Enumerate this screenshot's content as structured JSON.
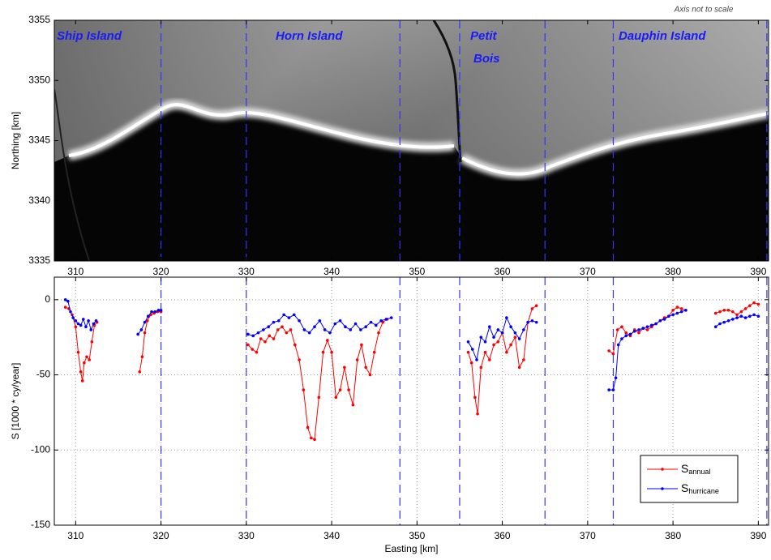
{
  "chart_data": [
    {
      "type": "image",
      "note": "Axis not to scale",
      "ylabel": "Northing [km]",
      "xlim": [
        307.5,
        391.2
      ],
      "xticks": [
        310,
        320,
        330,
        340,
        350,
        360,
        370,
        380,
        390
      ],
      "ylim": [
        3335,
        3355
      ],
      "yticks": [
        3335,
        3340,
        3345,
        3350,
        3355
      ],
      "grid": false,
      "boundaries": [
        320,
        330,
        348,
        355,
        365,
        373,
        391
      ],
      "boundary_color": "#3333ff",
      "annotations": [
        "Ship Island",
        "Horn Island",
        "Petit",
        "Bois",
        "Dauphin Island"
      ],
      "annotation_color": "#1a1aff"
    },
    {
      "type": "line",
      "ylabel": "S [1000 * cy/year]",
      "xlabel": "Easting [km]",
      "xlim": [
        307.5,
        391.2
      ],
      "xticks": [
        310,
        320,
        330,
        340,
        350,
        360,
        370,
        380,
        390
      ],
      "ylim": [
        -150,
        15
      ],
      "yticks": [
        -150,
        -100,
        -50,
        0
      ],
      "grid": true,
      "boundaries": [
        320,
        330,
        348,
        355,
        365,
        373,
        391
      ],
      "boundary_color": "#3333ff",
      "legend": "lower right",
      "series": [
        {
          "name": "S",
          "subscript": "annual",
          "color": "#ff0000",
          "x": [
            308.8,
            309.2,
            309.6,
            310.0,
            310.3,
            310.6,
            310.8,
            311.0,
            311.3,
            311.6,
            311.9,
            312.2,
            312.5,
            null,
            317.5,
            317.8,
            318.1,
            318.4,
            318.8,
            319.2,
            319.6,
            320.0,
            null,
            330.2,
            330.7,
            331.2,
            331.7,
            332.2,
            332.7,
            333.2,
            333.7,
            334.2,
            334.7,
            335.2,
            335.7,
            336.2,
            336.7,
            337.2,
            337.6,
            338.0,
            338.5,
            339.0,
            339.5,
            340.0,
            340.5,
            341.0,
            341.5,
            342.0,
            342.5,
            343.0,
            343.5,
            344.0,
            344.5,
            345.0,
            345.5,
            346.0,
            346.5,
            null,
            356.0,
            356.4,
            356.8,
            357.1,
            357.5,
            358.0,
            358.5,
            359.0,
            359.5,
            360.0,
            360.5,
            361.0,
            361.5,
            362.0,
            362.5,
            363.0,
            363.5,
            364.0,
            null,
            372.5,
            373.0,
            373.5,
            374.0,
            374.5,
            375.0,
            375.5,
            376.0,
            376.5,
            377.0,
            377.5,
            378.0,
            378.5,
            379.0,
            379.5,
            380.0,
            380.5,
            381.0,
            381.5,
            null,
            385.0,
            385.5,
            386.0,
            386.5,
            387.0,
            387.5,
            388.0,
            388.5,
            389.0,
            389.5,
            390.0
          ],
          "values": [
            -5,
            -6,
            -10,
            -18,
            -35,
            -48,
            -54,
            -42,
            -38,
            -40,
            -28,
            -17,
            -15,
            null,
            -48,
            -38,
            -22,
            -14,
            -10,
            -9,
            -8,
            -8,
            null,
            -30,
            -33,
            -35,
            -26,
            -28,
            -24,
            -26,
            -20,
            -18,
            -22,
            -20,
            -30,
            -40,
            -60,
            -85,
            -92,
            -93,
            -65,
            -35,
            -27,
            -35,
            -65,
            -60,
            -45,
            -60,
            -70,
            -40,
            -30,
            -45,
            -50,
            -35,
            -22,
            -15,
            -13,
            null,
            -35,
            -42,
            -65,
            -76,
            -45,
            -35,
            -40,
            -30,
            -28,
            -22,
            -35,
            -30,
            -25,
            -45,
            -40,
            -15,
            -6,
            -4,
            null,
            -34,
            -36,
            -20,
            -18,
            -22,
            -24,
            -20,
            -22,
            -19,
            -20,
            -18,
            -16,
            -14,
            -12,
            -11,
            -7,
            -5,
            -6,
            -7,
            null,
            -9,
            -8,
            -7,
            -7,
            -8,
            -10,
            -8,
            -6,
            -4,
            -2,
            -3
          ]
        },
        {
          "name": "S",
          "subscript": "hurricane",
          "color": "#0000ff",
          "x": [
            308.8,
            309.1,
            309.4,
            309.7,
            310.0,
            310.3,
            310.6,
            310.9,
            311.2,
            311.5,
            311.8,
            312.1,
            312.4,
            null,
            317.3,
            317.7,
            318.1,
            318.5,
            318.9,
            319.3,
            319.7,
            320.0,
            null,
            330.2,
            330.8,
            331.4,
            332.0,
            332.6,
            333.2,
            333.8,
            334.4,
            335.0,
            335.6,
            336.2,
            336.8,
            337.4,
            338.0,
            338.6,
            339.2,
            339.8,
            340.4,
            341.0,
            341.6,
            342.2,
            342.8,
            343.4,
            344.0,
            344.6,
            345.2,
            345.8,
            346.4,
            347.0,
            null,
            356.0,
            356.5,
            357.0,
            357.5,
            358.0,
            358.5,
            359.0,
            359.5,
            360.0,
            360.5,
            361.0,
            361.5,
            362.0,
            362.5,
            363.0,
            363.5,
            364.0,
            null,
            372.5,
            373.0,
            373.3,
            373.6,
            374.0,
            374.5,
            375.0,
            375.5,
            376.0,
            376.5,
            377.0,
            377.5,
            378.0,
            378.5,
            379.0,
            379.5,
            380.0,
            380.5,
            381.0,
            381.5,
            null,
            385.0,
            385.5,
            386.0,
            386.5,
            387.0,
            387.5,
            388.0,
            388.5,
            389.0,
            389.5,
            390.0
          ],
          "values": [
            0,
            -1,
            -8,
            -12,
            -14,
            -16,
            -17,
            -13,
            -18,
            -14,
            -20,
            -16,
            -14,
            null,
            -23,
            -20,
            -15,
            -11,
            -8,
            -8,
            -7,
            -7,
            null,
            -23,
            -24,
            -22,
            -20,
            -18,
            -15,
            -14,
            -10,
            -12,
            -10,
            -14,
            -20,
            -22,
            -18,
            -14,
            -20,
            -22,
            -16,
            -14,
            -18,
            -20,
            -16,
            -20,
            -18,
            -15,
            -17,
            -14,
            -13,
            -12,
            null,
            -28,
            -33,
            -40,
            -25,
            -28,
            -18,
            -25,
            -20,
            -22,
            -12,
            -18,
            -22,
            -26,
            -20,
            -15,
            -14,
            -15,
            null,
            -60,
            -60,
            -52,
            -30,
            -26,
            -24,
            -23,
            -21,
            -20,
            -19,
            -18,
            -17,
            -16,
            -14,
            -13,
            -11,
            -10,
            -9,
            -8,
            -7,
            null,
            -18,
            -16,
            -15,
            -14,
            -13,
            -12,
            -11,
            -12,
            -11,
            -10,
            -11
          ]
        }
      ]
    }
  ]
}
